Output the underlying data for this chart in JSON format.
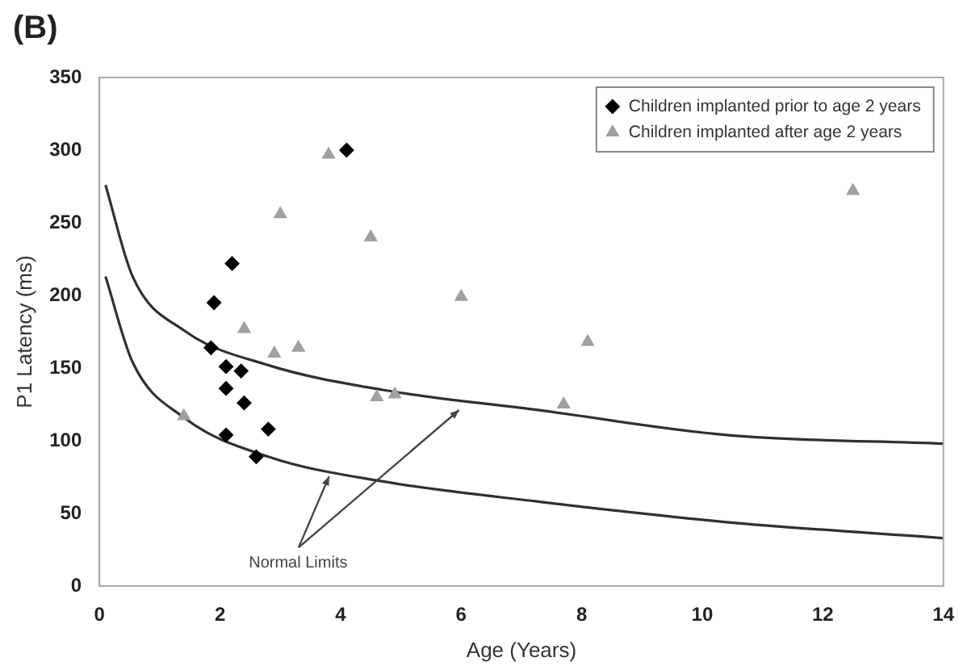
{
  "chart_data": {
    "type": "scatter",
    "title": "(B)",
    "xlabel": "Age (Years)",
    "ylabel": "P1 Latency (ms)",
    "xlim": [
      0,
      14
    ],
    "xticks": [
      0,
      2,
      4,
      6,
      8,
      10,
      12,
      14
    ],
    "ylim": [
      0,
      350
    ],
    "yticks": [
      0,
      50,
      100,
      150,
      200,
      250,
      300,
      350
    ],
    "grid": false,
    "legend": "top right",
    "annotations": [
      {
        "text": "Normal Limits",
        "x": 3.8,
        "y": 76
      }
    ],
    "series": [
      {
        "name": "Children implanted prior to age 2 years",
        "color": "#000000",
        "marker": "diamond",
        "x": [
          4.1,
          2.2,
          1.9,
          1.85,
          2.1,
          2.35,
          2.1,
          2.4,
          2.1,
          2.8,
          2.6
        ],
        "values": [
          300,
          222,
          195,
          164,
          151,
          148,
          136,
          126,
          104,
          108,
          89
        ]
      },
      {
        "name": "Children implanted after age 2 years",
        "color": "#a0a0a0",
        "marker": "triangle",
        "x": [
          3.8,
          3.0,
          4.5,
          2.4,
          2.9,
          3.3,
          6.0,
          4.6,
          4.9,
          1.4,
          7.7,
          8.1,
          12.5
        ],
        "values": [
          297,
          256,
          240,
          177,
          160,
          164,
          199,
          130,
          132,
          117,
          125,
          168,
          272
        ]
      },
      {
        "type": "line",
        "color": "#303030",
        "marker": "none",
        "x": [
          0.1,
          0.55,
          1.4,
          2.8,
          4.7,
          7.3,
          10.4,
          14
        ],
        "values": [
          276,
          213,
          176,
          152,
          135,
          121,
          104,
          98
        ]
      },
      {
        "type": "line",
        "color": "#303030",
        "marker": "none",
        "x": [
          0.1,
          0.55,
          1.4,
          2.8,
          4.7,
          7.3,
          10.4,
          14
        ],
        "values": [
          213,
          154,
          116,
          89,
          72,
          58,
          44,
          33
        ]
      }
    ]
  }
}
